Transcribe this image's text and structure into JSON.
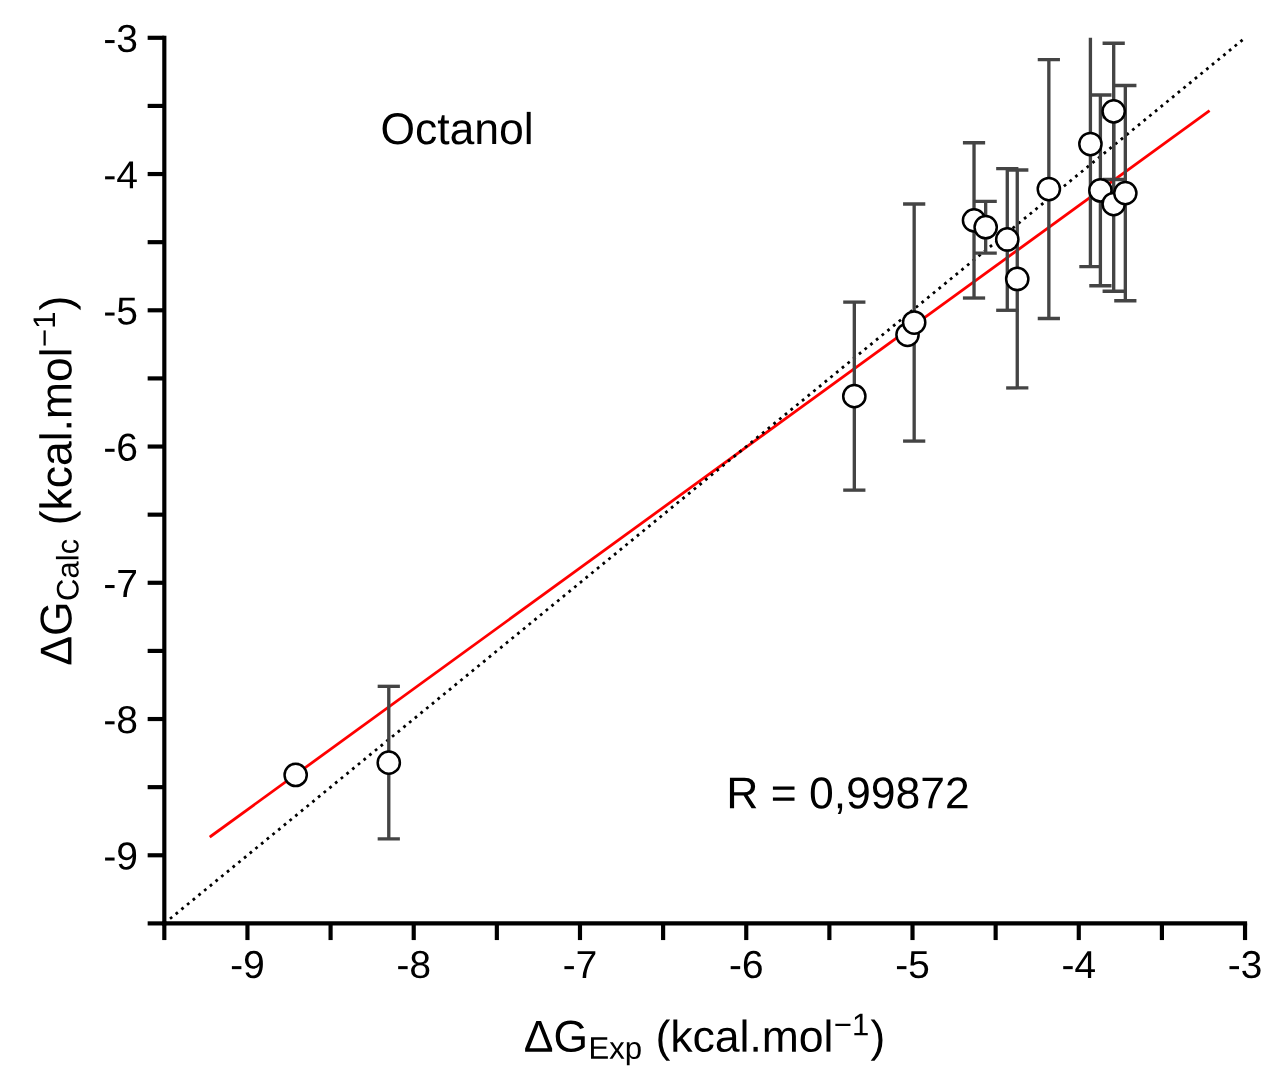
{
  "chart_data": {
    "type": "scatter",
    "xlabel": "ΔG$_{Exp}$ (kcal.mol$^{−1}$)",
    "ylabel": "ΔG$_{Calc}$ (kcal.mol$^{−1}$)",
    "annotations": [
      "Octanol",
      "R = 0,99872"
    ],
    "xlim": [
      -9.5,
      -3
    ],
    "ylim": [
      -9.5,
      -3
    ],
    "xticks": [
      {
        "value": -9.5,
        "label": null
      },
      -9,
      {
        "value": -8.5,
        "label": null
      },
      -8,
      {
        "value": -7.5,
        "label": null
      },
      -7,
      {
        "value": -6.5,
        "label": null
      },
      -6,
      {
        "value": -5.5,
        "label": null
      },
      -5,
      {
        "value": -4.5,
        "label": null
      },
      -4,
      {
        "value": -3.5,
        "label": null
      },
      -3
    ],
    "yticks": [
      {
        "value": -9.5,
        "label": null
      },
      -9,
      {
        "value": -8.5,
        "label": null
      },
      -8,
      {
        "value": -7.5,
        "label": null
      },
      -7,
      {
        "value": -6.5,
        "label": null
      },
      -6,
      {
        "value": -5.5,
        "label": null
      },
      -5,
      {
        "value": -4.5,
        "label": null
      },
      -4,
      {
        "value": -3.5,
        "label": null
      },
      -3
    ],
    "grid": false,
    "legend": false,
    "series": [
      {
        "color": "#000000",
        "marker": "circle",
        "x": [
          -8.71,
          -8.15,
          -5.35,
          -5.03,
          -4.99,
          -4.63,
          -4.56,
          -4.43,
          -4.37,
          -4.18,
          -3.93,
          -3.87,
          -3.79,
          -3.79,
          -3.72
        ],
        "values": [
          -8.41,
          -8.32,
          -5.63,
          -5.18,
          -5.09,
          -4.34,
          -4.39,
          -4.48,
          -4.77,
          -4.11,
          -3.78,
          -4.12,
          -3.54,
          -4.22,
          -4.14
        ],
        "errors": [
          null,
          0.56,
          0.69,
          null,
          0.87,
          0.57,
          0.19,
          0.52,
          0.8,
          0.95,
          0.9,
          0.7,
          0.5,
          0.64,
          0.79
        ]
      },
      {
        "type": "line",
        "color": "#ff0000",
        "line_style": "solid",
        "x": [
          -9.22,
          -3.22
        ],
        "values": [
          -8.86,
          -3.54
        ]
      },
      {
        "type": "line",
        "color": "#000000",
        "line_style": "dotted",
        "x": [
          -9.5,
          -3
        ],
        "values": [
          -9.5,
          -3
        ]
      }
    ]
  }
}
